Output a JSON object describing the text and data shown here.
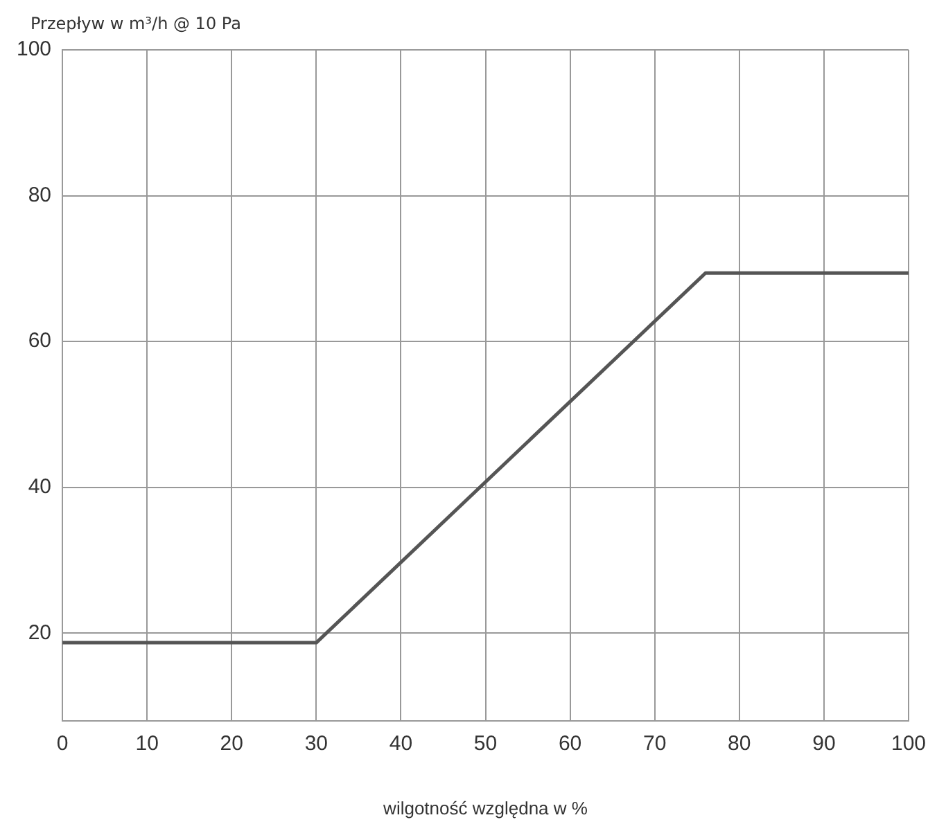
{
  "chart_data": {
    "type": "line",
    "ylabel": "Przepływ w m³/h @ 10 Pa",
    "xlabel": "wilgotność względna w %",
    "x": [
      0,
      30,
      76,
      100
    ],
    "series": [
      {
        "color": "#555555",
        "values": [
          18.7,
          18.7,
          69.4,
          69.4
        ]
      }
    ],
    "xlim": [
      0,
      100
    ],
    "xticks": [
      0,
      10,
      20,
      30,
      40,
      50,
      60,
      70,
      80,
      90,
      100
    ],
    "ylim": [
      8,
      100
    ],
    "yticks": [
      20,
      40,
      60,
      80,
      100
    ],
    "grid": true,
    "legend": false,
    "marker": "none",
    "line_style": "solid"
  }
}
